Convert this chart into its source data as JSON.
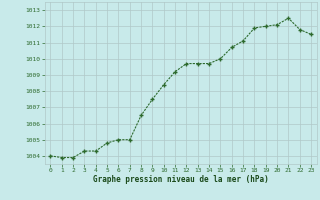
{
  "x": [
    0,
    1,
    2,
    3,
    4,
    5,
    6,
    7,
    8,
    9,
    10,
    11,
    12,
    13,
    14,
    15,
    16,
    17,
    18,
    19,
    20,
    21,
    22,
    23
  ],
  "y": [
    1004.0,
    1003.9,
    1003.9,
    1004.3,
    1004.3,
    1004.8,
    1005.0,
    1005.0,
    1006.5,
    1007.5,
    1008.4,
    1009.2,
    1009.7,
    1009.7,
    1009.7,
    1010.0,
    1010.7,
    1011.1,
    1011.9,
    1012.0,
    1012.1,
    1012.5,
    1011.8,
    1011.5
  ],
  "line_color": "#2d6a2d",
  "marker": "+",
  "marker_color": "#2d6a2d",
  "bg_color": "#c8eaea",
  "grid_color": "#b0c8c8",
  "xlabel": "Graphe pression niveau de la mer (hPa)",
  "xlabel_color": "#1a4a1a",
  "tick_color": "#2d6a2d",
  "ylim_min": 1003.5,
  "ylim_max": 1013.5,
  "yticks": [
    1004,
    1005,
    1006,
    1007,
    1008,
    1009,
    1010,
    1011,
    1012,
    1013
  ],
  "xticks": [
    0,
    1,
    2,
    3,
    4,
    5,
    6,
    7,
    8,
    9,
    10,
    11,
    12,
    13,
    14,
    15,
    16,
    17,
    18,
    19,
    20,
    21,
    22,
    23
  ]
}
